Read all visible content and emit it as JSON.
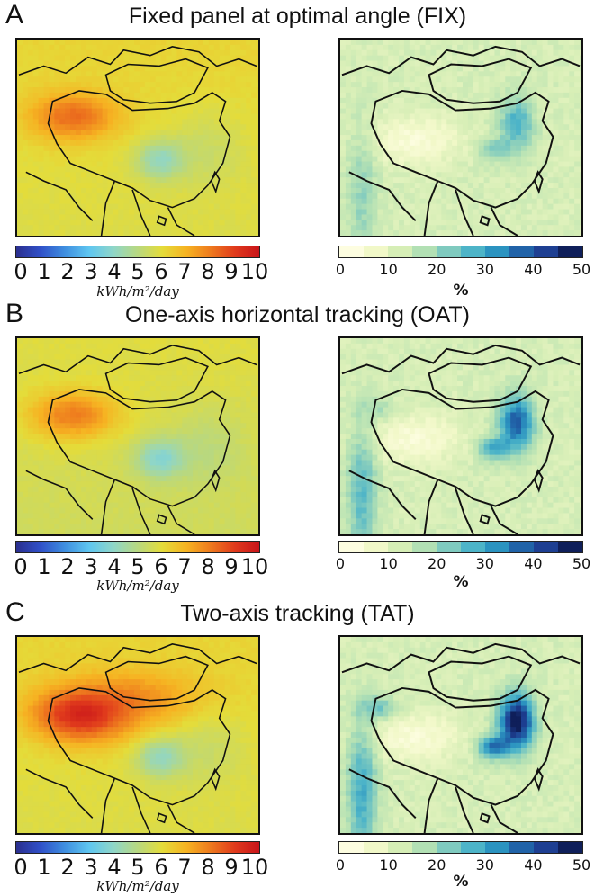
{
  "colors": {
    "jet": [
      "#2b2f8f",
      "#3050c8",
      "#3f8fe0",
      "#5fc6f0",
      "#8fd6c8",
      "#b8d880",
      "#e4dc3a",
      "#f6b322",
      "#ee7a1e",
      "#e03a1c",
      "#c8141a"
    ],
    "ygnbu": [
      "#fdfde0",
      "#f1f8c8",
      "#d6eeb6",
      "#b2e0b4",
      "#7fcabf",
      "#4db4c8",
      "#2b93c0",
      "#2163a8",
      "#1e3f92",
      "#0f1f5a"
    ],
    "border": "#111111"
  },
  "panels": [
    {
      "letter": "A",
      "title": "Fixed panel at optimal angle (FIX)",
      "map_left_name": "solar-irradiance-map",
      "map_right_name": "percent-gain-map"
    },
    {
      "letter": "B",
      "title": "One-axis horizontal tracking (OAT)",
      "map_left_name": "solar-irradiance-map",
      "map_right_name": "percent-gain-map"
    },
    {
      "letter": "C",
      "title": "Two-axis tracking (TAT)",
      "map_left_name": "solar-irradiance-map",
      "map_right_name": "percent-gain-map"
    }
  ],
  "left_colorbar": {
    "ticks": [
      "0",
      "1",
      "2",
      "3",
      "4",
      "5",
      "6",
      "7",
      "8",
      "9",
      "10"
    ],
    "unit": "kWh/m²/day"
  },
  "right_colorbar": {
    "ticks": [
      "0",
      "10",
      "20",
      "30",
      "40",
      "50"
    ],
    "unit": "%"
  }
}
